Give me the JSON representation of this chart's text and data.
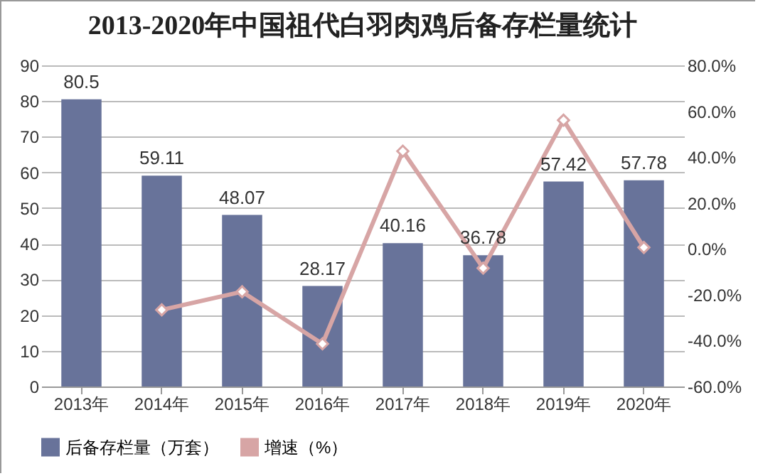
{
  "chart_data": {
    "type": "bar",
    "title": "2013-2020年中国祖代白羽肉鸡后备存栏量统计",
    "categories": [
      "2013年",
      "2014年",
      "2015年",
      "2016年",
      "2017年",
      "2018年",
      "2019年",
      "2020年"
    ],
    "series": [
      {
        "name": "后备存栏量（万套）",
        "color": "#68739a",
        "values": [
          80.5,
          59.11,
          48.07,
          28.17,
          40.16,
          36.78,
          57.42,
          57.78
        ],
        "value_labels": [
          "80.5",
          "59.11",
          "48.07",
          "28.17",
          "40.16",
          "36.78",
          "57.42",
          "57.78"
        ]
      },
      {
        "name": "增速（%）",
        "type": "line",
        "axis": "y2",
        "color": "#d7a5a5",
        "values": [
          null,
          -26.6,
          -18.7,
          -41.4,
          42.6,
          -8.4,
          56.1,
          0.6
        ]
      }
    ],
    "ylim": [
      0,
      90
    ],
    "yticks": [
      0,
      10,
      20,
      30,
      40,
      50,
      60,
      70,
      80,
      90
    ],
    "y2lim": [
      -60,
      80
    ],
    "y2ticks": [
      {
        "value": -60,
        "label": "-60.0%"
      },
      {
        "value": -40,
        "label": "-40.0%"
      },
      {
        "value": -20,
        "label": "-20.0%"
      },
      {
        "value": 0,
        "label": "0.0%"
      },
      {
        "value": 20,
        "label": "20.0%"
      },
      {
        "value": 40,
        "label": "40.0%"
      },
      {
        "value": 60,
        "label": "60.0%"
      },
      {
        "value": 80,
        "label": "80.0%"
      }
    ],
    "grid": "y",
    "legend": "bottom",
    "marker": "diamond"
  }
}
